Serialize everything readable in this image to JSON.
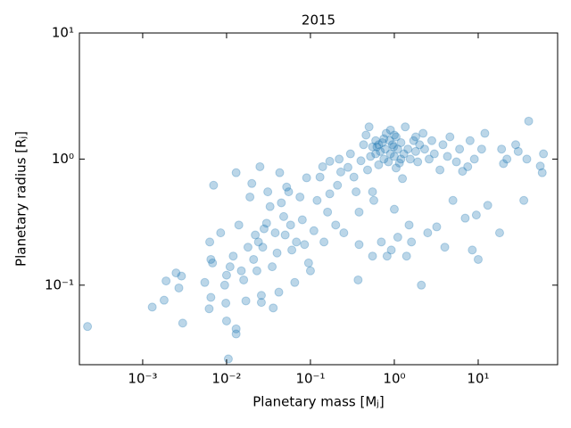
{
  "chart_data": {
    "type": "scatter",
    "title": "2015",
    "x_label": "Planetary mass [Mⱼ]",
    "y_label": "Planetary radius [Rⱼ]",
    "log_x": true,
    "log_y": true,
    "color": "#1f77b4",
    "alpha": 0.3,
    "xlim": [
      0.000176,
      88.5
    ],
    "ylim": [
      0.0234,
      10
    ],
    "xticks": [
      {
        "value": 0.001,
        "label": "10⁻³"
      },
      {
        "value": 0.01,
        "label": "10⁻²"
      },
      {
        "value": 0.1,
        "label": "10⁻¹"
      },
      {
        "value": 1,
        "label": "10⁰"
      },
      {
        "value": 10,
        "label": "10¹"
      }
    ],
    "yticks": [
      {
        "value": 0.1,
        "label": "10⁻¹"
      },
      {
        "value": 1,
        "label": "10⁰"
      },
      {
        "value": 10,
        "label": "10¹"
      }
    ],
    "x": [
      0.00022,
      0.0013,
      0.0018,
      0.0019,
      0.0025,
      0.0027,
      0.0029,
      0.003,
      0.0055,
      0.0062,
      0.0065,
      0.0063,
      0.0065,
      0.007,
      0.0068,
      0.0085,
      0.0095,
      0.01,
      0.0105,
      0.0098,
      0.01,
      0.011,
      0.012,
      0.013,
      0.013,
      0.013,
      0.014,
      0.015,
      0.016,
      0.017,
      0.018,
      0.019,
      0.02,
      0.021,
      0.022,
      0.023,
      0.024,
      0.025,
      0.026,
      0.026,
      0.027,
      0.028,
      0.03,
      0.031,
      0.033,
      0.035,
      0.036,
      0.038,
      0.04,
      0.042,
      0.043,
      0.045,
      0.048,
      0.05,
      0.052,
      0.055,
      0.058,
      0.06,
      0.065,
      0.068,
      0.075,
      0.08,
      0.085,
      0.09,
      0.095,
      0.1,
      0.11,
      0.12,
      0.13,
      0.14,
      0.145,
      0.16,
      0.17,
      0.17,
      0.2,
      0.21,
      0.22,
      0.23,
      0.25,
      0.28,
      0.3,
      0.33,
      0.35,
      0.37,
      0.38,
      0.38,
      0.4,
      0.43,
      0.46,
      0.48,
      0.5,
      0.52,
      0.55,
      0.55,
      0.57,
      0.6,
      0.62,
      0.65,
      0.68,
      0.7,
      0.72,
      0.75,
      0.78,
      0.8,
      0.82,
      0.85,
      0.88,
      0.9,
      0.92,
      0.95,
      0.98,
      1.0,
      1.0,
      1.05,
      1.1,
      1.1,
      1.15,
      1.2,
      1.25,
      1.3,
      1.35,
      1.4,
      1.45,
      1.5,
      1.55,
      1.6,
      1.7,
      1.8,
      1.9,
      2.0,
      2.1,
      2.2,
      2.3,
      2.5,
      2.6,
      2.8,
      3.0,
      3.2,
      3.5,
      3.8,
      4.0,
      4.3,
      4.6,
      5.0,
      5.5,
      6.0,
      6.5,
      7.0,
      7.5,
      8.0,
      8.5,
      9.0,
      9.5,
      10,
      11,
      12,
      13,
      18,
      19,
      20,
      22,
      28,
      30,
      35,
      38,
      40,
      55,
      58,
      60,
      0.65,
      0.75,
      0.9,
      1.0,
      1.2,
      0.6,
      1.05,
      0.55,
      1.8
    ],
    "values": [
      0.047,
      0.067,
      0.076,
      0.108,
      0.125,
      0.095,
      0.118,
      0.05,
      0.105,
      0.065,
      0.08,
      0.22,
      0.16,
      0.62,
      0.15,
      0.26,
      0.1,
      0.052,
      0.026,
      0.072,
      0.12,
      0.14,
      0.17,
      0.045,
      0.041,
      0.78,
      0.3,
      0.13,
      0.11,
      0.075,
      0.2,
      0.5,
      0.64,
      0.16,
      0.25,
      0.13,
      0.22,
      0.87,
      0.083,
      0.073,
      0.2,
      0.28,
      0.31,
      0.55,
      0.42,
      0.14,
      0.066,
      0.26,
      0.18,
      0.088,
      0.78,
      0.45,
      0.35,
      0.25,
      0.6,
      0.55,
      0.3,
      0.19,
      0.105,
      0.22,
      0.5,
      0.33,
      0.21,
      0.71,
      0.15,
      0.13,
      0.27,
      0.47,
      0.72,
      0.87,
      0.22,
      0.38,
      0.53,
      0.96,
      0.3,
      0.62,
      1.0,
      0.79,
      0.26,
      0.86,
      1.1,
      0.72,
      0.55,
      0.11,
      0.21,
      0.38,
      0.97,
      1.3,
      1.55,
      0.82,
      1.8,
      1.05,
      0.17,
      0.55,
      0.47,
      1.4,
      1.25,
      0.9,
      1.15,
      0.22,
      1.35,
      1.0,
      1.2,
      1.6,
      0.17,
      0.95,
      1.4,
      1.1,
      0.19,
      1.3,
      1.25,
      0.4,
      1.05,
      1.5,
      1.2,
      0.24,
      0.93,
      1.35,
      0.7,
      1.1,
      1.8,
      0.17,
      1.2,
      0.3,
      1.0,
      0.22,
      1.4,
      1.15,
      0.95,
      1.3,
      0.1,
      1.6,
      1.2,
      0.26,
      1.0,
      1.4,
      1.1,
      0.29,
      0.82,
      1.3,
      0.2,
      1.05,
      1.5,
      0.47,
      0.95,
      1.2,
      0.8,
      0.34,
      0.87,
      1.4,
      0.19,
      1.0,
      0.36,
      0.16,
      1.2,
      1.6,
      0.43,
      0.26,
      1.2,
      0.92,
      1.0,
      1.3,
      1.15,
      0.47,
      1.0,
      2.0,
      0.88,
      0.78,
      1.1,
      1.3,
      1.45,
      1.7,
      1.55,
      1.0,
      1.1,
      0.85,
      1.25,
      1.5
    ]
  }
}
